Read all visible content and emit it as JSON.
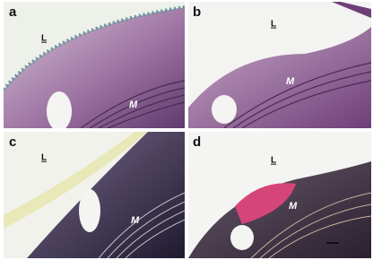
{
  "panels": [
    {
      "letter": "a",
      "lumen": "L",
      "media": "M"
    },
    {
      "letter": "b",
      "lumen": "L",
      "media": "M"
    },
    {
      "letter": "c",
      "lumen": "L",
      "media": "M"
    },
    {
      "letter": "d",
      "lumen": "L",
      "media": "M"
    }
  ]
}
